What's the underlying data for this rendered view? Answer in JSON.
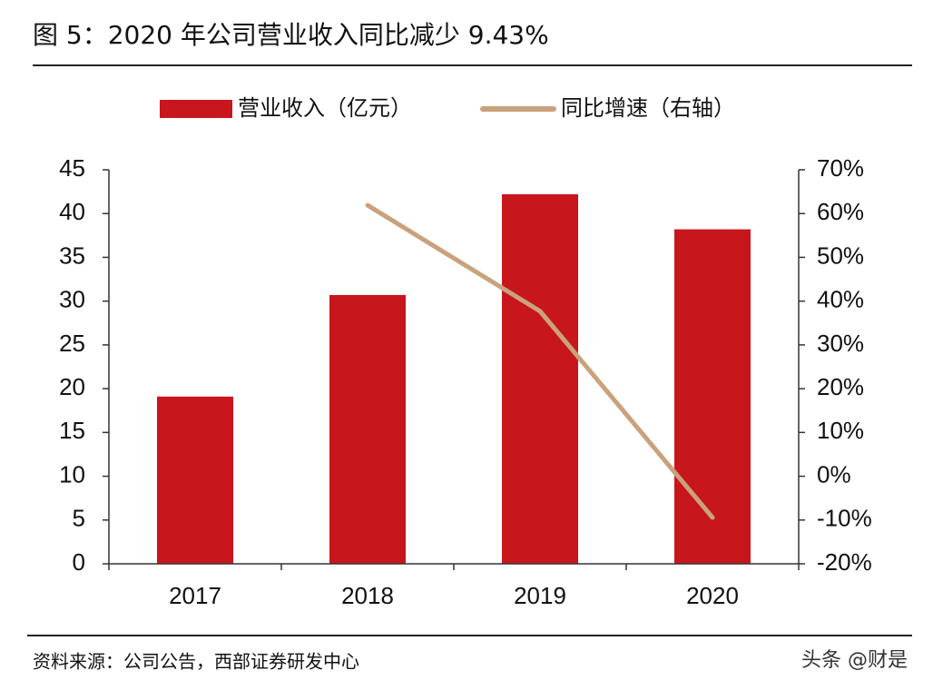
{
  "chart_data": {
    "type": "bar",
    "title": "图 5：2020 年公司营业收入同比减少 9.43%",
    "categories": [
      "2017",
      "2018",
      "2019",
      "2020"
    ],
    "series": [
      {
        "name": "营业收入（亿元）",
        "type": "bar",
        "color": "#c8161d",
        "values": [
          19.1,
          30.7,
          42.2,
          38.2
        ]
      },
      {
        "name": "同比增速（右轴）",
        "type": "line",
        "color": "#c9a27c",
        "axis": "y2",
        "values": [
          null,
          61.9,
          37.7,
          -9.43
        ]
      }
    ],
    "ylim": [
      0,
      45
    ],
    "yticks": [
      0,
      5,
      10,
      15,
      20,
      25,
      30,
      35,
      40,
      45
    ],
    "y2lim": [
      -20,
      70
    ],
    "y2ticks": [
      {
        "value": -20,
        "label": "-20%"
      },
      {
        "value": -10,
        "label": "-10%"
      },
      {
        "value": 0,
        "label": "0%"
      },
      {
        "value": 10,
        "label": "10%"
      },
      {
        "value": 20,
        "label": "20%"
      },
      {
        "value": 30,
        "label": "30%"
      },
      {
        "value": 40,
        "label": "40%"
      },
      {
        "value": 50,
        "label": "50%"
      },
      {
        "value": 60,
        "label": "60%"
      },
      {
        "value": 70,
        "label": "70%"
      }
    ],
    "grid": false,
    "legend": "top"
  },
  "footer": {
    "source": "资料来源：公司公告，西部证券研发中心",
    "watermark": "头条 @财是"
  }
}
